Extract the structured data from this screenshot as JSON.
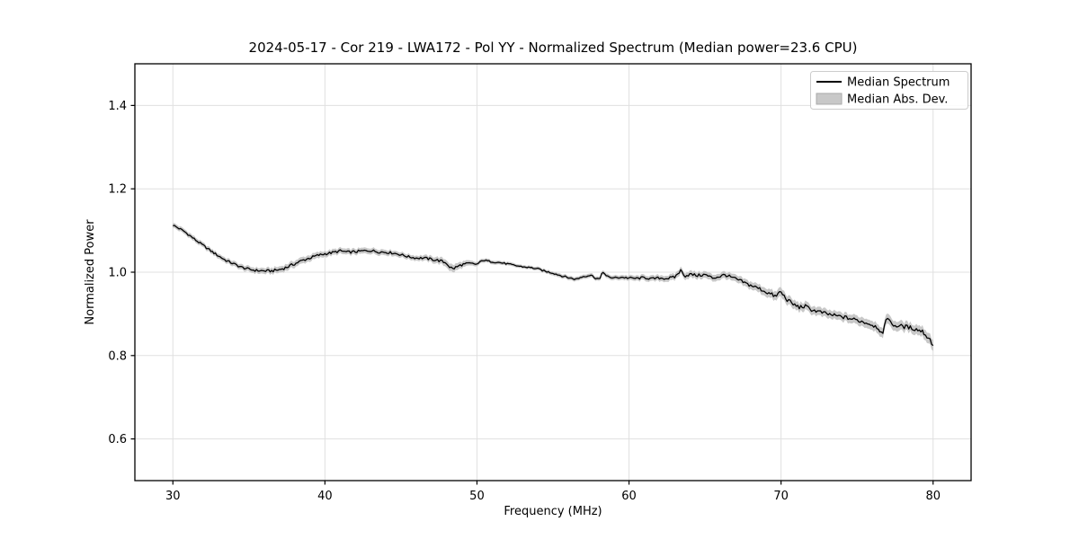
{
  "chart_data": {
    "type": "line",
    "title": "2024-05-17 - Cor 219 - LWA172 - Pol YY - Normalized Spectrum (Median power=23.6 CPU)",
    "xlabel": "Frequency (MHz)",
    "ylabel": "Normalized Power",
    "xlim": [
      27.5,
      82.5
    ],
    "ylim": [
      0.5,
      1.5
    ],
    "xticks": {
      "values": [
        30,
        40,
        50,
        60,
        70,
        80
      ],
      "labels": [
        "30",
        "40",
        "50",
        "60",
        "70",
        "80"
      ]
    },
    "yticks": {
      "values": [
        0.6,
        0.8,
        1.0,
        1.2,
        1.4
      ],
      "labels": [
        "0.6",
        "0.8",
        "1.0",
        "1.2",
        "1.4"
      ]
    },
    "grid": true,
    "legend": {
      "position": "upper right",
      "entries": [
        {
          "label": "Median Spectrum",
          "type": "line",
          "color": "#000000"
        },
        {
          "label": "Median Abs. Dev.",
          "type": "patch",
          "fill": "#c8c8c8",
          "edge": "#aaaaaa"
        }
      ]
    },
    "colors": {
      "line": "#000000",
      "band": "#c8c8c8",
      "grid": "#e0e0e0",
      "spine": "#000000",
      "background": "#ffffff"
    },
    "series": [
      {
        "name": "Median Spectrum",
        "type": "line",
        "color": "#000000",
        "linewidth": 1.3,
        "anchor_points": [
          [
            30.0,
            1.113
          ],
          [
            30.3,
            1.107
          ],
          [
            30.7,
            1.099
          ],
          [
            31.0,
            1.091
          ],
          [
            31.5,
            1.077
          ],
          [
            32.0,
            1.064
          ],
          [
            32.5,
            1.051
          ],
          [
            33.0,
            1.039
          ],
          [
            33.5,
            1.028
          ],
          [
            34.0,
            1.02
          ],
          [
            34.5,
            1.012
          ],
          [
            35.0,
            1.007
          ],
          [
            35.5,
            1.004
          ],
          [
            36.0,
            1.003
          ],
          [
            36.5,
            1.003
          ],
          [
            37.0,
            1.006
          ],
          [
            37.5,
            1.012
          ],
          [
            38.0,
            1.02
          ],
          [
            38.5,
            1.028
          ],
          [
            39.0,
            1.034
          ],
          [
            39.5,
            1.04
          ],
          [
            40.0,
            1.044
          ],
          [
            40.5,
            1.047
          ],
          [
            41.0,
            1.051
          ],
          [
            41.5,
            1.048
          ],
          [
            42.0,
            1.049
          ],
          [
            42.5,
            1.051
          ],
          [
            43.0,
            1.052
          ],
          [
            43.5,
            1.049
          ],
          [
            44.0,
            1.048
          ],
          [
            44.5,
            1.046
          ],
          [
            45.0,
            1.042
          ],
          [
            45.5,
            1.037
          ],
          [
            46.0,
            1.034
          ],
          [
            46.5,
            1.034
          ],
          [
            47.0,
            1.031
          ],
          [
            47.5,
            1.028
          ],
          [
            48.0,
            1.022
          ],
          [
            48.2,
            1.013
          ],
          [
            48.4,
            1.008
          ],
          [
            48.7,
            1.013
          ],
          [
            49.0,
            1.018
          ],
          [
            49.5,
            1.021
          ],
          [
            50.0,
            1.019
          ],
          [
            50.4,
            1.029
          ],
          [
            50.8,
            1.026
          ],
          [
            51.5,
            1.023
          ],
          [
            52.0,
            1.02
          ],
          [
            52.5,
            1.016
          ],
          [
            53.0,
            1.013
          ],
          [
            53.5,
            1.011
          ],
          [
            54.0,
            1.008
          ],
          [
            54.5,
            1.002
          ],
          [
            55.0,
            0.998
          ],
          [
            55.5,
            0.992
          ],
          [
            56.0,
            0.987
          ],
          [
            56.5,
            0.983
          ],
          [
            57.0,
            0.99
          ],
          [
            57.5,
            0.993
          ],
          [
            57.8,
            0.986
          ],
          [
            58.1,
            0.983
          ],
          [
            58.25,
            1.004
          ],
          [
            58.5,
            0.99
          ],
          [
            59.0,
            0.986
          ],
          [
            59.5,
            0.988
          ],
          [
            60.0,
            0.986
          ],
          [
            60.5,
            0.985
          ],
          [
            61.0,
            0.987
          ],
          [
            61.5,
            0.984
          ],
          [
            62.0,
            0.986
          ],
          [
            62.5,
            0.985
          ],
          [
            63.0,
            0.988
          ],
          [
            63.4,
            1.004
          ],
          [
            63.7,
            0.991
          ],
          [
            64.0,
            0.995
          ],
          [
            64.5,
            0.992
          ],
          [
            65.0,
            0.994
          ],
          [
            65.5,
            0.986
          ],
          [
            66.0,
            0.99
          ],
          [
            66.3,
            0.994
          ],
          [
            66.7,
            0.988
          ],
          [
            67.0,
            0.984
          ],
          [
            67.4,
            0.978
          ],
          [
            67.8,
            0.971
          ],
          [
            68.2,
            0.966
          ],
          [
            68.6,
            0.96
          ],
          [
            69.0,
            0.953
          ],
          [
            69.4,
            0.946
          ],
          [
            69.7,
            0.941
          ],
          [
            69.9,
            0.954
          ],
          [
            70.1,
            0.947
          ],
          [
            70.4,
            0.934
          ],
          [
            70.8,
            0.923
          ],
          [
            71.2,
            0.916
          ],
          [
            71.6,
            0.918
          ],
          [
            72.0,
            0.91
          ],
          [
            72.5,
            0.905
          ],
          [
            73.0,
            0.9
          ],
          [
            73.5,
            0.896
          ],
          [
            74.0,
            0.893
          ],
          [
            74.5,
            0.889
          ],
          [
            75.0,
            0.885
          ],
          [
            75.5,
            0.88
          ],
          [
            76.0,
            0.874
          ],
          [
            76.4,
            0.867
          ],
          [
            76.7,
            0.848
          ],
          [
            76.95,
            0.898
          ],
          [
            77.2,
            0.878
          ],
          [
            77.5,
            0.872
          ],
          [
            78.0,
            0.87
          ],
          [
            78.5,
            0.867
          ],
          [
            79.0,
            0.862
          ],
          [
            79.3,
            0.858
          ],
          [
            79.6,
            0.846
          ],
          [
            79.8,
            0.838
          ],
          [
            80.0,
            0.826
          ]
        ]
      },
      {
        "name": "Median Abs. Dev.",
        "type": "band",
        "fill": "#c8c8c8",
        "mad_points": [
          [
            30,
            0.006
          ],
          [
            33,
            0.006
          ],
          [
            36,
            0.007
          ],
          [
            38,
            0.008
          ],
          [
            40,
            0.007
          ],
          [
            43,
            0.007
          ],
          [
            46,
            0.006
          ],
          [
            48.4,
            0.009
          ],
          [
            50,
            0.005
          ],
          [
            53,
            0.004
          ],
          [
            56,
            0.005
          ],
          [
            58,
            0.005
          ],
          [
            60,
            0.006
          ],
          [
            62,
            0.007
          ],
          [
            64,
            0.008
          ],
          [
            66,
            0.008
          ],
          [
            68,
            0.009
          ],
          [
            70,
            0.011
          ],
          [
            72,
            0.01
          ],
          [
            74,
            0.01
          ],
          [
            76,
            0.011
          ],
          [
            77,
            0.012
          ],
          [
            78.5,
            0.011
          ],
          [
            80,
            0.013
          ]
        ]
      }
    ],
    "sampling": {
      "step_mhz": 0.1,
      "noise_ratio": 0.9
    }
  }
}
